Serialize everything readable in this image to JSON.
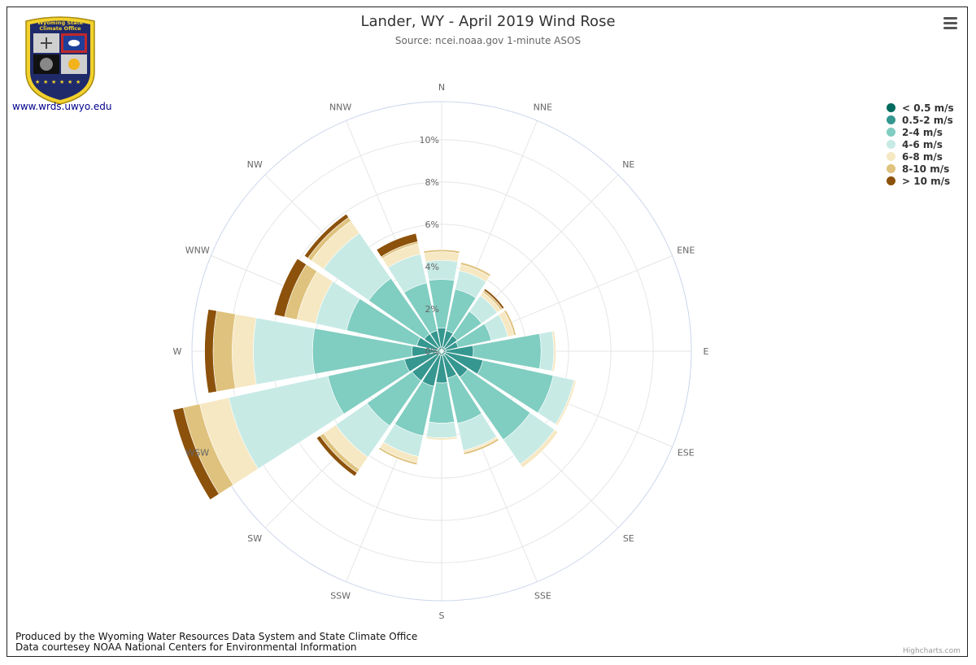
{
  "header": {
    "title": "Lander, WY - April 2019 Wind Rose",
    "subtitle": "Source: ncei.noaa.gov 1-minute ASOS"
  },
  "logo": {
    "text_line1": "Wyoming State",
    "text_line2": "Climate Office",
    "link": "www.wrds.uwyo.edu"
  },
  "menu_icon": "hamburger-menu-icon",
  "footer": {
    "line1": "Produced by the Wyoming Water Resources Data System and State Climate Office",
    "line2": "Data courtesey NOAA National Centers for Environmental Information"
  },
  "credits": "Highcharts.com",
  "chart_data": {
    "type": "windrose",
    "title": "Lander, WY - April 2019 Wind Rose",
    "subtitle": "Source: ncei.noaa.gov 1-minute ASOS",
    "directions": [
      "N",
      "NNE",
      "NE",
      "ENE",
      "E",
      "ESE",
      "SE",
      "SSE",
      "S",
      "SSW",
      "SW",
      "WSW",
      "W",
      "WNW",
      "NW",
      "NNW"
    ],
    "radial_ticks": [
      "0%",
      "2%",
      "4%",
      "6%",
      "8%",
      "10%"
    ],
    "radial_max": 11.8,
    "legend_placement": "top-right",
    "stacking": "cumulative percent",
    "series": [
      {
        "name": "< 0.5 m/s",
        "color": "#006b5e",
        "values": [
          0.2,
          0.2,
          0.2,
          0.2,
          0.2,
          0.2,
          0.2,
          0.2,
          0.2,
          0.2,
          0.2,
          0.2,
          0.2,
          0.2,
          0.2,
          0.2
        ]
      },
      {
        "name": "0.5-2 m/s",
        "color": "#35978f",
        "values": [
          0.9,
          0.8,
          0.7,
          0.6,
          1.3,
          1.8,
          1.3,
          1.1,
          1.3,
          1.5,
          1.5,
          1.6,
          1.2,
          1.0,
          0.8,
          0.8
        ]
      },
      {
        "name": "2-4 m/s",
        "color": "#80cdc1",
        "values": [
          2.3,
          2.0,
          1.4,
          1.6,
          3.2,
          3.4,
          3.6,
          2.2,
          1.9,
          2.4,
          2.6,
          3.7,
          4.7,
          3.4,
          3.2,
          2.3
        ]
      },
      {
        "name": "4-6 m/s",
        "color": "#c7eae5",
        "values": [
          0.9,
          0.9,
          0.9,
          0.8,
          0.6,
          1.0,
          1.4,
          1.3,
          0.7,
          1.0,
          1.8,
          4.8,
          2.8,
          1.5,
          2.6,
          1.4
        ]
      },
      {
        "name": "6-8 m/s",
        "color": "#f6e8c3",
        "values": [
          0.4,
          0.3,
          0.2,
          0.3,
          0.1,
          0.1,
          0.2,
          0.1,
          0.1,
          0.3,
          0.7,
          1.4,
          1.0,
          0.9,
          0.7,
          0.5
        ]
      },
      {
        "name": "8-10 m/s",
        "color": "#dfc27d",
        "values": [
          0.1,
          0.1,
          0.1,
          0.1,
          0,
          0,
          0,
          0.1,
          0,
          0.1,
          0.2,
          0.8,
          0.9,
          0.6,
          0.2,
          0.1
        ]
      },
      {
        "name": "> 10 m/s",
        "color": "#8c510a",
        "values": [
          0,
          0,
          0.1,
          0,
          0,
          0,
          0,
          0,
          0,
          0,
          0.2,
          0.5,
          0.4,
          0.5,
          0.2,
          0.4
        ]
      }
    ]
  }
}
